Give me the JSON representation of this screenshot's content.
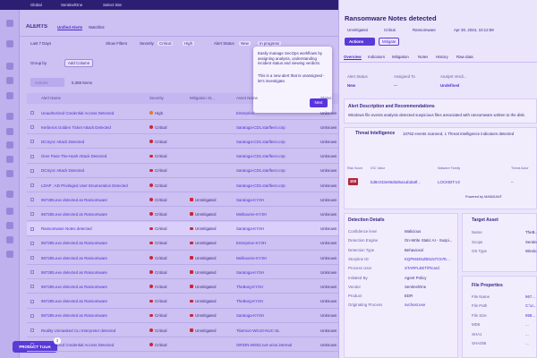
{
  "topbar": {
    "scope": "Global",
    "account": "SentinelOne",
    "site": "Select Site"
  },
  "page": {
    "title": "ALERTS",
    "tabs": [
      "Unified Alerts",
      "Watchlist"
    ]
  },
  "filters": {
    "range": "Last 7 Days",
    "show": "Show Filters",
    "severity_label": "Severity",
    "severity": [
      "Critical",
      "High"
    ],
    "status_label": "Alert Status",
    "status": [
      "New",
      "In progress"
    ]
  },
  "toolbar": {
    "group_by": "Group by",
    "add_column": "Add Column",
    "actions": "Actions",
    "count": "5,369 Items"
  },
  "table": {
    "columns": [
      "Alert Name",
      "Severity",
      "Mitigation St...",
      "Asset Name",
      "Status"
    ],
    "rows": [
      [
        "Unauthorized Credential Access Detected",
        "High",
        null,
        "Enterprise...",
        "Unknown"
      ],
      [
        "Kerberos Golden Ticket Attack Detected",
        "Critical",
        null,
        "Saratoga-CD1.starfleet.corp",
        "Unknown"
      ],
      [
        "DCSync Attack Detected",
        "Critical",
        null,
        "Saratoga-CD1.starfleet.corp",
        "Unknown"
      ],
      [
        "Over Pass-The-Hash Attack Detected",
        "Critical",
        null,
        "Saratoga-CD1.starfleet.corp",
        "Unknown"
      ],
      [
        "DCSync Attack Detected",
        "Critical",
        null,
        "Saratoga-CD1.starfleet.corp",
        "Unknown"
      ],
      [
        "LDAP : AD Privileged User Enumeration Detected",
        "Critical",
        null,
        "Saratoga-CD1.starfleet.corp",
        "Unknown"
      ],
      [
        "967285.exe detected as Ransomware",
        "Critical",
        "Unmitigated",
        "Saratoga-KY3H",
        "Unknown"
      ],
      [
        "967285.exe detected as Ransomware",
        "Critical",
        "Unmitigated",
        "Melbourne-KY3H",
        "Unknown"
      ],
      [
        "Ransomware Notes detected",
        "Critical",
        "Unmitigated",
        "Saratoga-KY3H",
        "Unknown"
      ],
      [
        "967285.exe detected as Ransomware",
        "Critical",
        "Unmitigated",
        "Enterprise-KY3H",
        "Unknown"
      ],
      [
        "967285.exe detected as Ransomware",
        "Critical",
        "Unmitigated",
        "Melbourne-KY3H",
        "Unknown"
      ],
      [
        "967285.exe detected as Ransomware",
        "Critical",
        "Unmitigated",
        "Saratoga-KY3H",
        "Unknown"
      ],
      [
        "967285.exe detected as Ransomware",
        "Critical",
        "Unmitigated",
        "TheBorg-KY3H",
        "Unknown"
      ],
      [
        "967285.exe detected as Ransomware",
        "Critical",
        "Unmitigated",
        "TheBorg-KY3H",
        "Unknown"
      ],
      [
        "967285.exe detected as Ransomware",
        "Critical",
        "Unmitigated",
        "Saratoga-KY3H",
        "Unknown"
      ],
      [
        "Reality Unmasked CLI Interpreter detected",
        "Critical",
        "Unmitigated",
        "Tilarmon-Win10-NUC-SL",
        "Unknown"
      ],
      [
        "Unauthorized Credential Access Detected",
        "Critical",
        null,
        "ORION-WS02.net-orion.internal",
        "Unknown"
      ]
    ]
  },
  "tour": {
    "text": [
      "Easily manage SecOps workflows by assigning analysis, understanding incident status and viewing verdicts.",
      "This is a new alert that is unassigned - let's investigate."
    ],
    "next": "Next",
    "button": "PRODUCT TOUR",
    "badge": "3"
  },
  "detail": {
    "title": "Ransomware Notes detected",
    "badges": [
      "Unmitigated",
      "Critical",
      "Ransomware",
      "Apr 30, 2024, 10:12:59"
    ],
    "buttons": [
      "Actions",
      "Mitigate"
    ],
    "tabs": [
      "Overview",
      "Indicators",
      "Mitigation",
      "Notes",
      "History",
      "Raw data"
    ],
    "fields": [
      [
        "Alert Status",
        "New"
      ],
      [
        "Assigned To",
        "—"
      ],
      [
        "Analyst Verdi...",
        "Undefined"
      ]
    ],
    "description_title": "Alert Description and Recommendations",
    "description": "Windows file events analysis detected suspicious files associated with ransomware written to the disk.",
    "ti_title": "Threat Intelligence",
    "ti_summary": "10762 events scanned, 1 Threat intelligence indicators detected",
    "ti_columns": [
      "Risk Score",
      "IOC Value",
      "Malware Family",
      "Threat Actor"
    ],
    "ti_row": [
      "100",
      "bd8c033e95d6d5a1abda8f...",
      "LOCKBIT.V2",
      "–"
    ],
    "powered": "Powered by MANDIANT",
    "detection_title": "Detection Details",
    "detection": [
      [
        "Confidence level",
        "Malicious"
      ],
      [
        "Detection Engine",
        "On-Write Static AI - Suspi..."
      ],
      [
        "Detection Type",
        "Behavioral"
      ],
      [
        "Storyline ID",
        "KQPM4E5ZB5157C57E..."
      ],
      [
        "Process User",
        "STARFLEET\\Picard"
      ],
      [
        "Initiated By",
        "Agent Policy"
      ],
      [
        "Vendor",
        "SentinelOne"
      ],
      [
        "Product",
        "EDR"
      ],
      [
        "Originating Process",
        "svchost.exe"
      ]
    ],
    "asset_title": "Target Asset",
    "asset": [
      [
        "Name",
        "TheB..."
      ],
      [
        "Scope",
        "Sentinel..."
      ],
      [
        "OS Type",
        "Windo..."
      ]
    ],
    "file_title": "File Properties",
    "file": [
      [
        "File Name",
        "967..."
      ],
      [
        "File Path",
        "C:\\U..."
      ],
      [
        "File Size",
        "958..."
      ],
      [
        "MD5",
        "..."
      ],
      [
        "SHA1",
        "..."
      ],
      [
        "SHA256",
        "..."
      ]
    ]
  }
}
